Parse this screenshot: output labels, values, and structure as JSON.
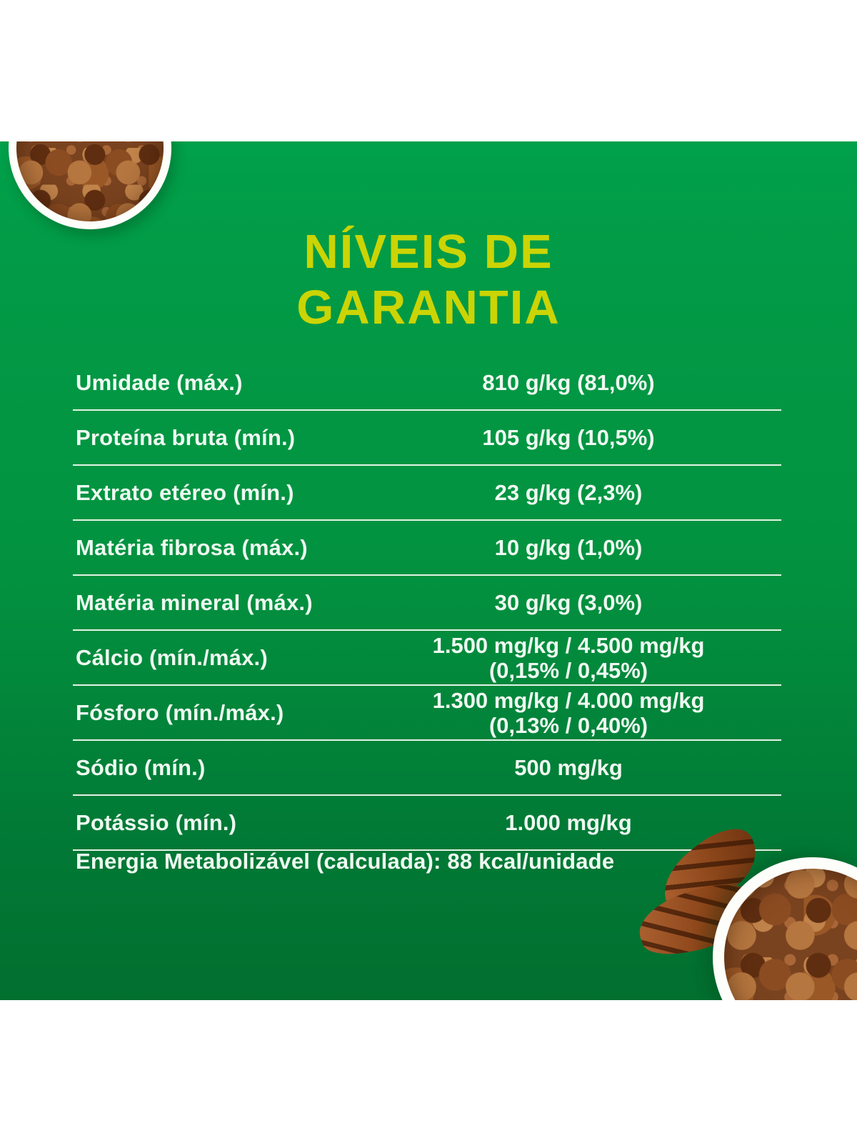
{
  "title": {
    "line1": "NÍVEIS DE",
    "line2": "GARANTIA"
  },
  "table": {
    "rows": [
      {
        "label": "Umidade (máx.)",
        "value": "810 g/kg (81,0%)"
      },
      {
        "label": "Proteína bruta (mín.)",
        "value": "105 g/kg (10,5%)"
      },
      {
        "label": "Extrato etéreo (mín.)",
        "value": "23 g/kg (2,3%)"
      },
      {
        "label": "Matéria fibrosa (máx.)",
        "value": "10 g/kg (1,0%)"
      },
      {
        "label": "Matéria mineral (máx.)",
        "value": "30 g/kg (3,0%)"
      },
      {
        "label": "Cálcio (mín./máx.)",
        "value_lines": [
          "1.500 mg/kg / 4.500 mg/kg",
          "(0,15% / 0,45%)"
        ]
      },
      {
        "label": "Fósforo (mín./máx.)",
        "value_lines": [
          "1.300 mg/kg / 4.000 mg/kg",
          "(0,13% / 0,40%)"
        ]
      },
      {
        "label": "Sódio (mín.)",
        "value": "500 mg/kg"
      },
      {
        "label": "Potássio (mín.)",
        "value": "1.000 mg/kg"
      }
    ]
  },
  "footer": {
    "energy_note": "Energia Metabolizável (calculada): 88 kcal/unidade"
  },
  "images": {
    "top_left": "bowl-of-wet-pet-food-chunks",
    "bottom_right": "bowl-of-wet-pet-food-chunks",
    "meat": "grilled-meat-fillet-pieces"
  },
  "colors": {
    "green_top": "#029a46",
    "green_bottom": "#026f2f",
    "title_yellow": "#cbd404",
    "text_white": "#eef9f1",
    "divider": "#eef9f1",
    "chunk_brown": "#8c4c21",
    "bowl_white": "#fdfdfa"
  }
}
